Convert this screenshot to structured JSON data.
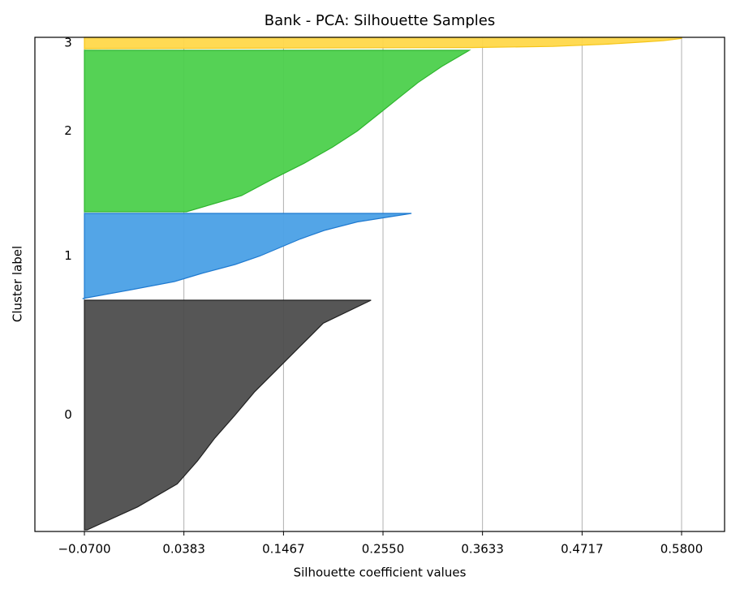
{
  "chart_data": {
    "type": "silhouette",
    "title": "Bank - PCA: Silhouette Samples",
    "xlabel": "Silhouette coefficient values",
    "ylabel": "Cluster label",
    "xlim": [
      -0.1239,
      0.6268
    ],
    "xticks": [
      {
        "value": -0.07,
        "label": "−0.0700"
      },
      0.0383,
      0.1467,
      {
        "value": 0.255,
        "label": "0.2550"
      },
      0.3633,
      0.4717,
      {
        "value": 0.58,
        "label": "0.5800"
      }
    ],
    "ylim": [
      0,
      3045
    ],
    "grid": true,
    "series": [
      {
        "name": "0",
        "color": "#4d4d4d",
        "edge": "#222222",
        "size": 1415,
        "values": [
          -0.067,
          -0.012,
          0.031,
          0.053,
          0.072,
          0.094,
          0.115,
          0.14,
          0.165,
          0.19,
          0.242
        ]
      },
      {
        "name": "1",
        "color": "#4aa0e6",
        "edge": "#1f7ad0",
        "size": 525,
        "values": [
          -0.072,
          -0.021,
          0.028,
          0.059,
          0.094,
          0.121,
          0.143,
          0.165,
          0.191,
          0.227,
          0.286
        ]
      },
      {
        "name": "2",
        "color": "#4cd04c",
        "edge": "#2db52d",
        "size": 995,
        "values": [
          0.041,
          0.101,
          0.134,
          0.169,
          0.2,
          0.227,
          0.249,
          0.271,
          0.293,
          0.319,
          0.349
        ]
      },
      {
        "name": "3",
        "color": "#ffd84a",
        "edge": "#f5c518",
        "size": 70,
        "values": [
          -0.07,
          0.35,
          0.44,
          0.47,
          0.5,
          0.52,
          0.54,
          0.56,
          0.57,
          0.58,
          0.58
        ]
      }
    ]
  }
}
